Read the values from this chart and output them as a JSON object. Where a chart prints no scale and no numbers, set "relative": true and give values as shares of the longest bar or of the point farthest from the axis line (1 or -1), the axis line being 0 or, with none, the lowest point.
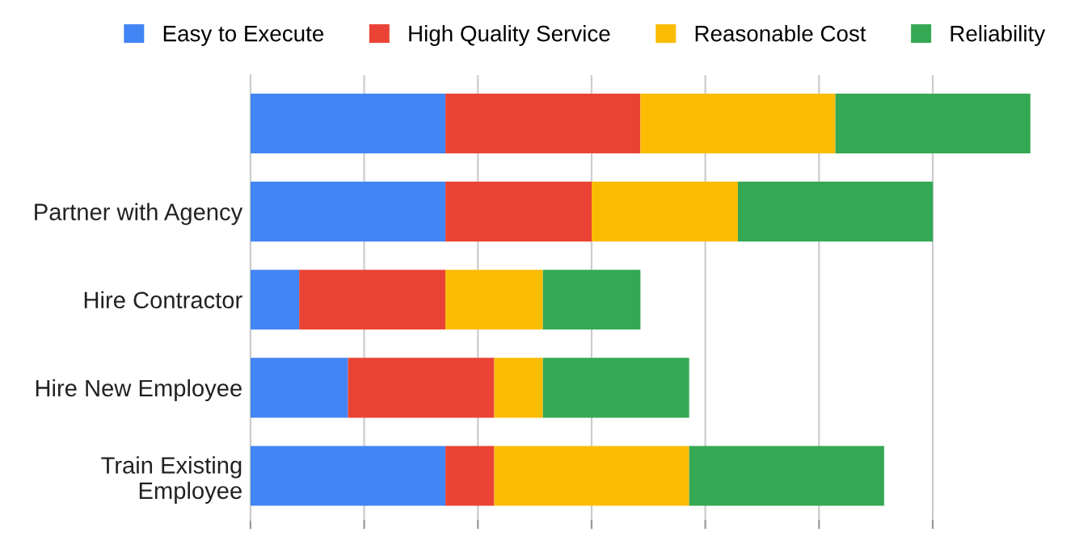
{
  "chart_data": {
    "type": "bar",
    "orientation": "horizontal",
    "stacked": true,
    "relative": true,
    "grid": "x",
    "legend": "top",
    "categories": [
      null,
      "Partner with Agency",
      "Hire Contractor",
      "Hire New Employee",
      "Train Existing\nEmployee"
    ],
    "series": [
      {
        "name": "Easy to Execute",
        "color": "#4285f4",
        "values": [
          0.25,
          0.25,
          0.0625,
          0.125,
          0.25
        ]
      },
      {
        "name": "High Quality Service",
        "color": "#ea4335",
        "values": [
          0.25,
          0.1875,
          0.1875,
          0.1875,
          0.0625
        ]
      },
      {
        "name": "Reasonable Cost",
        "color": "#fbbc04",
        "values": [
          0.25,
          0.1875,
          0.125,
          0.0625,
          0.25
        ]
      },
      {
        "name": "Reliability",
        "color": "#34a853",
        "values": [
          0.25,
          0.25,
          0.125,
          0.1875,
          0.25
        ]
      }
    ]
  }
}
